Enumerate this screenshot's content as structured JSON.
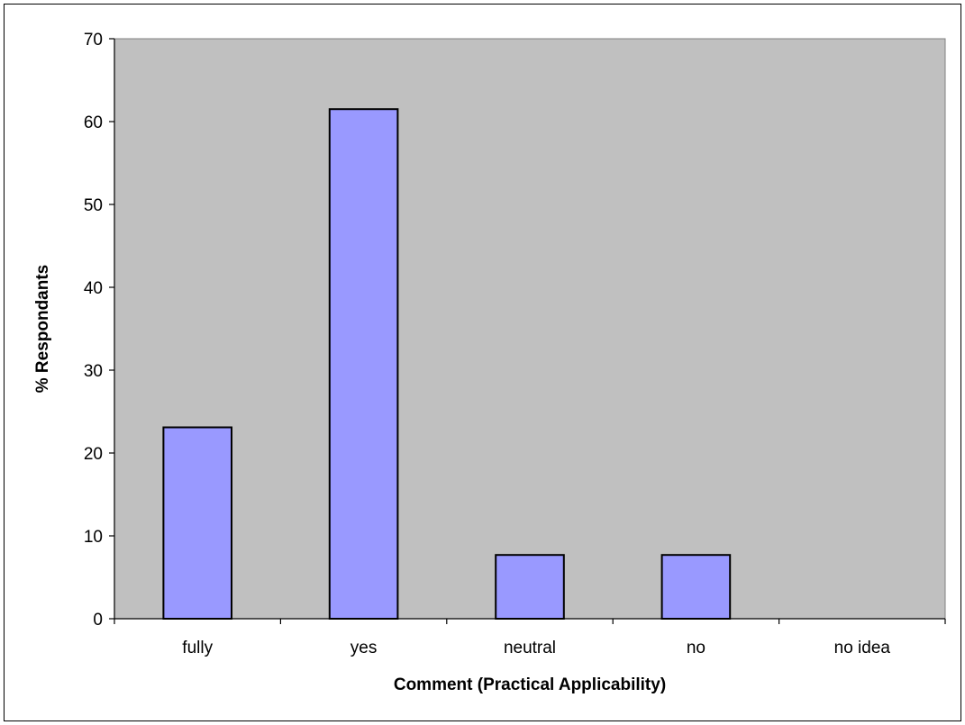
{
  "chart_data": {
    "type": "bar",
    "title": "",
    "xlabel": "Comment (Practical Applicability)",
    "ylabel": "% Respondants",
    "categories": [
      "fully",
      "yes",
      "neutral",
      "no",
      "no idea"
    ],
    "values": [
      23.1,
      61.5,
      7.7,
      7.7,
      0
    ],
    "ylim": [
      0,
      70
    ],
    "yticks": [
      0,
      10,
      20,
      30,
      40,
      50,
      60,
      70
    ],
    "grid": false,
    "legend": "none",
    "colors": {
      "plot_background": "#c0c0c0",
      "bar_fill": "#9999ff",
      "bar_stroke": "#000000"
    }
  }
}
